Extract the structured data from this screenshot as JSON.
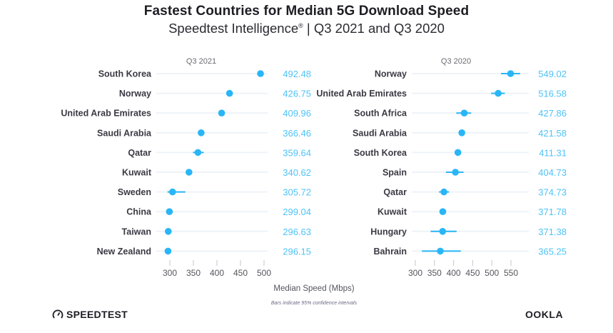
{
  "header": {
    "title": "Fastest Countries for Median 5G Download Speed",
    "subtitle_main": "Speedtest Intelligence",
    "subtitle_mark": "®",
    "subtitle_rest": " | Q3 2021 and Q3 2020"
  },
  "footer": {
    "xlabel": "Median Speed (Mbps)",
    "note": "Bars indicate 95% confidence intervals",
    "left_logo": "SPEEDTEST",
    "right_logo": "OOKLA"
  },
  "colors": {
    "point": "#29b6f6",
    "value_text": "#4fc3f7",
    "row_line": "#eef3f8"
  },
  "chart_data": [
    {
      "type": "scatter",
      "title": "Q3 2021",
      "xlabel": "Median Speed (Mbps)",
      "xlim": [
        285,
        510
      ],
      "xticks": [
        300,
        350,
        400,
        450,
        500
      ],
      "categories": [
        "South Korea",
        "Norway",
        "United Arab Emirates",
        "Saudi Arabia",
        "Qatar",
        "Kuwait",
        "Sweden",
        "China",
        "Taiwan",
        "New Zealand"
      ],
      "values": [
        492.48,
        426.75,
        409.96,
        366.46,
        359.64,
        340.62,
        305.72,
        299.04,
        296.63,
        296.15
      ],
      "ci_low": [
        489,
        421,
        404,
        364,
        349,
        338,
        295,
        297,
        294,
        289
      ],
      "ci_high": [
        496,
        432,
        415,
        368,
        372,
        343,
        333,
        301,
        299,
        303
      ]
    },
    {
      "type": "scatter",
      "title": "Q3 2020",
      "xlabel": "Median Speed (Mbps)",
      "xlim": [
        285,
        575
      ],
      "xticks": [
        300,
        350,
        400,
        450,
        500,
        550
      ],
      "categories": [
        "Norway",
        "United Arab Emirates",
        "South Africa",
        "Saudi Arabia",
        "South Korea",
        "Spain",
        "Qatar",
        "Kuwait",
        "Hungary",
        "Bahrain"
      ],
      "values": [
        549.02,
        516.58,
        427.86,
        421.58,
        411.31,
        404.73,
        374.73,
        371.78,
        371.38,
        365.25
      ],
      "ci_low": [
        524,
        498,
        407,
        419,
        409,
        380,
        362,
        369,
        340,
        317
      ],
      "ci_high": [
        574,
        534,
        446,
        424,
        414,
        426,
        388,
        374,
        408,
        419
      ]
    }
  ]
}
